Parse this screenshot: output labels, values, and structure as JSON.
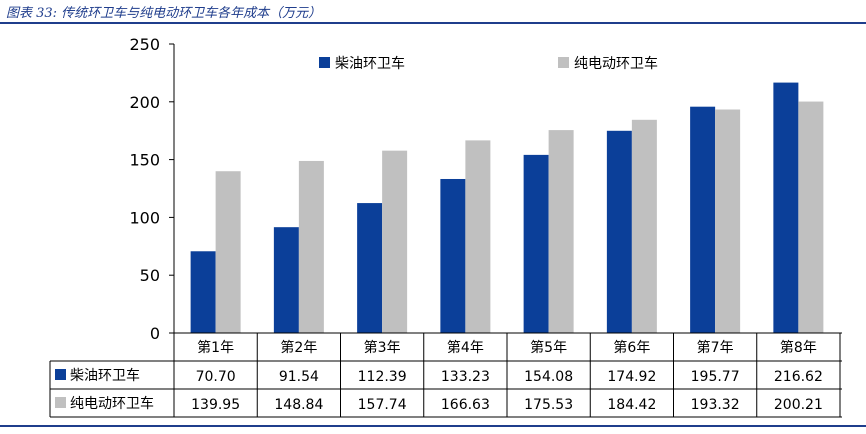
{
  "caption": "图表 33:  传统环卫车与纯电动环卫车各年成本（万元）",
  "colors": {
    "diesel": "#0b3f99",
    "electric": "#c0c0c0",
    "rule": "#1f3d8c"
  },
  "chart_data": {
    "type": "bar",
    "title": "",
    "xlabel": "",
    "ylabel": "",
    "ylim": [
      0,
      250
    ],
    "yticks": [
      0,
      50,
      100,
      150,
      200,
      250
    ],
    "categories": [
      "第1年",
      "第2年",
      "第3年",
      "第4年",
      "第5年",
      "第6年",
      "第7年",
      "第8年"
    ],
    "legend_position": "top",
    "grid": false,
    "series": [
      {
        "name": "柴油环卫车",
        "values": [
          70.7,
          91.54,
          112.39,
          133.23,
          154.08,
          174.92,
          195.77,
          216.62
        ],
        "labels": [
          "70.70",
          "91.54",
          "112.39",
          "133.23",
          "154.08",
          "174.92",
          "195.77",
          "216.62"
        ]
      },
      {
        "name": "纯电动环卫车",
        "values": [
          139.95,
          148.84,
          157.74,
          166.63,
          175.53,
          184.42,
          193.32,
          200.21
        ],
        "labels": [
          "139.95",
          "148.84",
          "157.74",
          "166.63",
          "175.53",
          "184.42",
          "193.32",
          "200.21"
        ]
      }
    ]
  }
}
